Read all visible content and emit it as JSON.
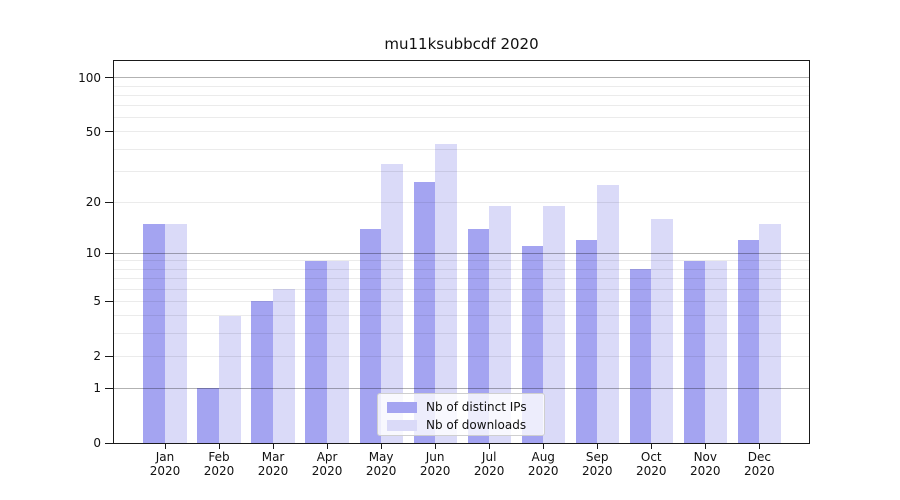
{
  "title": "mu11ksubbcdf 2020",
  "colors": {
    "distinct_ips": "#a4a4f1",
    "downloads": "#dadaf8",
    "axis": "#1a1a1a",
    "grid_major": "rgba(0,0,0,0.30)",
    "grid_minor": "rgba(0,0,0,0.08)"
  },
  "chart_data": {
    "type": "bar",
    "title": "mu11ksubbcdf 2020",
    "categories": [
      "Jan 2020",
      "Feb 2020",
      "Mar 2020",
      "Apr 2020",
      "May 2020",
      "Jun 2020",
      "Jul 2020",
      "Aug 2020",
      "Sep 2020",
      "Oct 2020",
      "Nov 2020",
      "Dec 2020"
    ],
    "series": [
      {
        "name": "Nb of distinct IPs",
        "color": "#a4a4f1",
        "values": [
          15,
          1,
          5,
          9,
          14,
          26,
          14,
          11,
          12,
          8,
          9,
          12
        ]
      },
      {
        "name": "Nb of downloads",
        "color": "#dadaf8",
        "values": [
          15,
          4,
          6,
          9,
          33,
          43,
          19,
          19,
          25,
          16,
          9,
          15
        ]
      }
    ],
    "xlabel": "",
    "ylabel": "",
    "yscale": "log1p",
    "ylim": [
      0,
      124
    ],
    "yticks": [
      0,
      1,
      2,
      5,
      10,
      20,
      50,
      100
    ],
    "ytick_labels": [
      "0",
      "1",
      "2",
      "5",
      "10",
      "20",
      "50",
      "100"
    ],
    "major_ticks": [
      1,
      10,
      100
    ],
    "minor_gridlines": [
      2,
      3,
      4,
      5,
      6,
      7,
      8,
      9,
      20,
      30,
      40,
      50,
      60,
      70,
      80,
      90
    ],
    "grid": "both",
    "legend_position": "lower-center"
  },
  "legend": {
    "items": [
      {
        "label": "Nb of distinct IPs"
      },
      {
        "label": "Nb of downloads"
      }
    ]
  }
}
